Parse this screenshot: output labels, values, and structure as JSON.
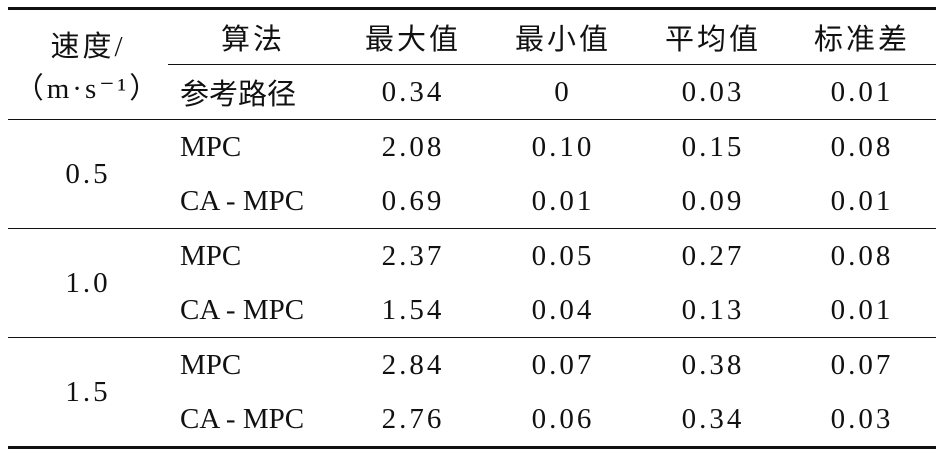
{
  "header": {
    "speed_label": "速度/",
    "speed_unit": "（m·s⁻¹）",
    "columns": [
      "算法",
      "最大值",
      "最小值",
      "平均值",
      "标准差"
    ]
  },
  "reference": {
    "algorithm": "参考路径",
    "values": [
      "0.34",
      "0",
      "0.03",
      "0.01"
    ]
  },
  "groups": [
    {
      "speed": "0.5",
      "rows": [
        {
          "algorithm": "MPC",
          "values": [
            "2.08",
            "0.10",
            "0.15",
            "0.08"
          ]
        },
        {
          "algorithm": "CA - MPC",
          "values": [
            "0.69",
            "0.01",
            "0.09",
            "0.01"
          ]
        }
      ]
    },
    {
      "speed": "1.0",
      "rows": [
        {
          "algorithm": "MPC",
          "values": [
            "2.37",
            "0.05",
            "0.27",
            "0.08"
          ]
        },
        {
          "algorithm": "CA - MPC",
          "values": [
            "1.54",
            "0.04",
            "0.13",
            "0.01"
          ]
        }
      ]
    },
    {
      "speed": "1.5",
      "rows": [
        {
          "algorithm": "MPC",
          "values": [
            "2.84",
            "0.07",
            "0.38",
            "0.07"
          ]
        },
        {
          "algorithm": "CA - MPC",
          "values": [
            "2.76",
            "0.06",
            "0.34",
            "0.03"
          ]
        }
      ]
    }
  ]
}
